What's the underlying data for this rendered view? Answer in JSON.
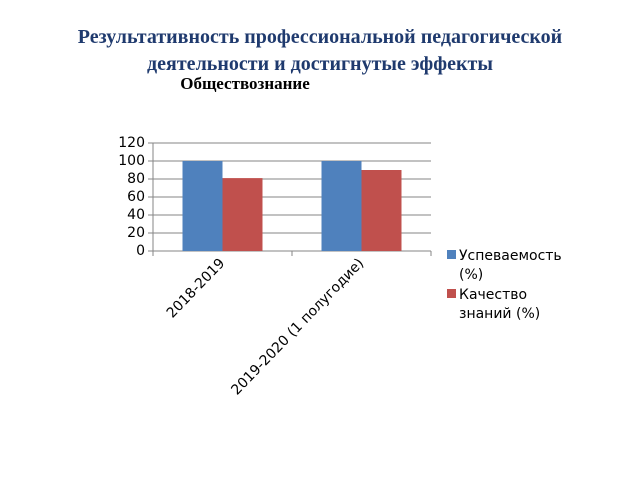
{
  "chart_data": {
    "type": "bar",
    "title": "Результативность профессиональной педагогической деятельности и достигнутые эффекты",
    "subtitle": "Обществознание",
    "categories": [
      "2018-2019",
      "2019-2020 (1 полугодие)"
    ],
    "series": [
      {
        "name": "Успеваемость (%)",
        "color": "#4f81bd",
        "values": [
          100,
          100
        ]
      },
      {
        "name": "Качество знаний (%)",
        "color": "#c0504d",
        "values": [
          81,
          90
        ]
      }
    ],
    "ylim": [
      0,
      120
    ],
    "yticks": [
      0,
      20,
      40,
      60,
      80,
      100,
      120
    ],
    "grid": true,
    "legend": "right"
  }
}
